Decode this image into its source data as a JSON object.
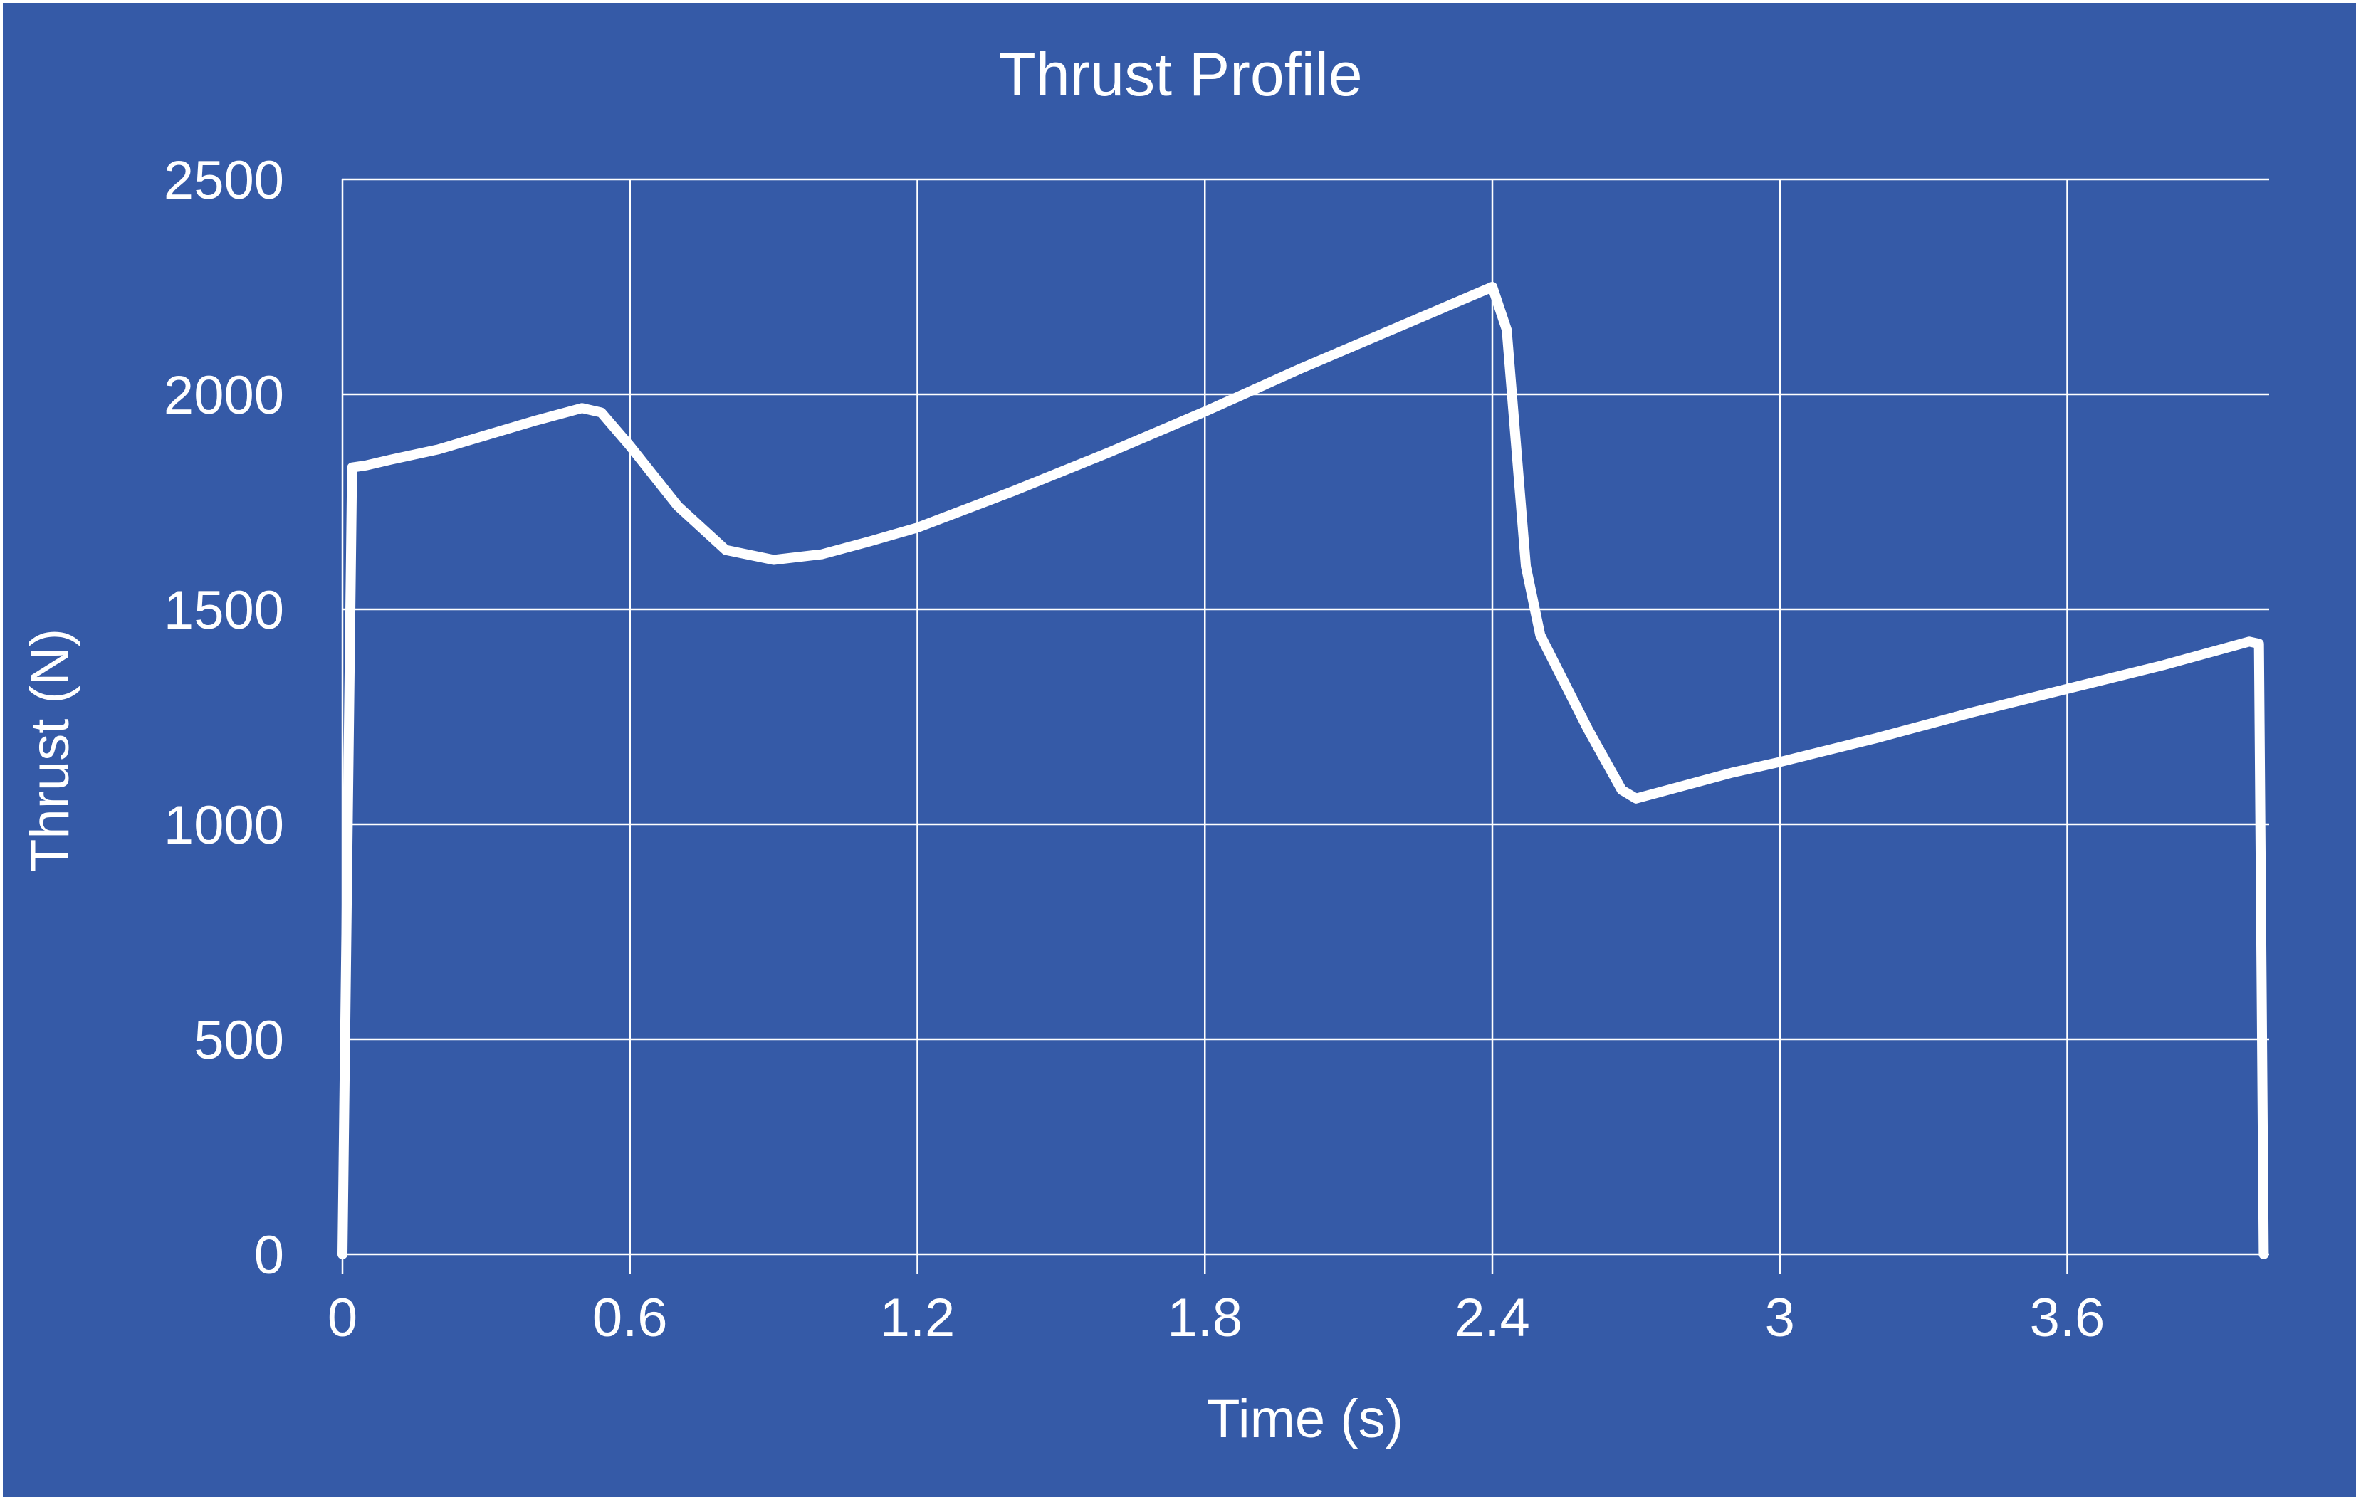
{
  "chart_data": {
    "type": "line",
    "title": "Thrust Profile",
    "xlabel": "Time (s)",
    "ylabel": "Thrust (N)",
    "xlim": [
      0,
      4.02
    ],
    "ylim": [
      0,
      2500
    ],
    "xticks": [
      0,
      0.6,
      1.2,
      1.8,
      2.4,
      3,
      3.6
    ],
    "xtick_labels": [
      "0",
      "0.6",
      "1.2",
      "1.8",
      "2.4",
      "3",
      "3.6"
    ],
    "yticks": [
      0,
      500,
      1000,
      1500,
      2000,
      2500
    ],
    "ytick_labels": [
      "0",
      "500",
      "1000",
      "1500",
      "2000",
      "2500"
    ],
    "grid": true,
    "legend": "none",
    "colors": {
      "background": "#355AA7",
      "line": "#FFFFFF",
      "grid": "#FFFFFF",
      "text": "#FFFFFF"
    },
    "series": [
      {
        "x": [
          0,
          0.02,
          0.05,
          0.1,
          0.2,
          0.3,
          0.4,
          0.5,
          0.54,
          0.6,
          0.7,
          0.8,
          0.9,
          1.0,
          1.1,
          1.2,
          1.4,
          1.6,
          1.8,
          2.0,
          2.2,
          2.4,
          2.43,
          2.47,
          2.5,
          2.6,
          2.67,
          2.7,
          2.8,
          2.9,
          3.0,
          3.2,
          3.4,
          3.6,
          3.8,
          3.98,
          4.0,
          4.01
        ],
        "y": [
          0,
          1830,
          1835,
          1848,
          1872,
          1905,
          1938,
          1968,
          1958,
          1880,
          1740,
          1638,
          1615,
          1628,
          1658,
          1690,
          1775,
          1865,
          1960,
          2060,
          2155,
          2250,
          2150,
          1600,
          1440,
          1220,
          1080,
          1060,
          1090,
          1120,
          1145,
          1200,
          1260,
          1315,
          1370,
          1425,
          1420,
          0
        ]
      }
    ]
  }
}
